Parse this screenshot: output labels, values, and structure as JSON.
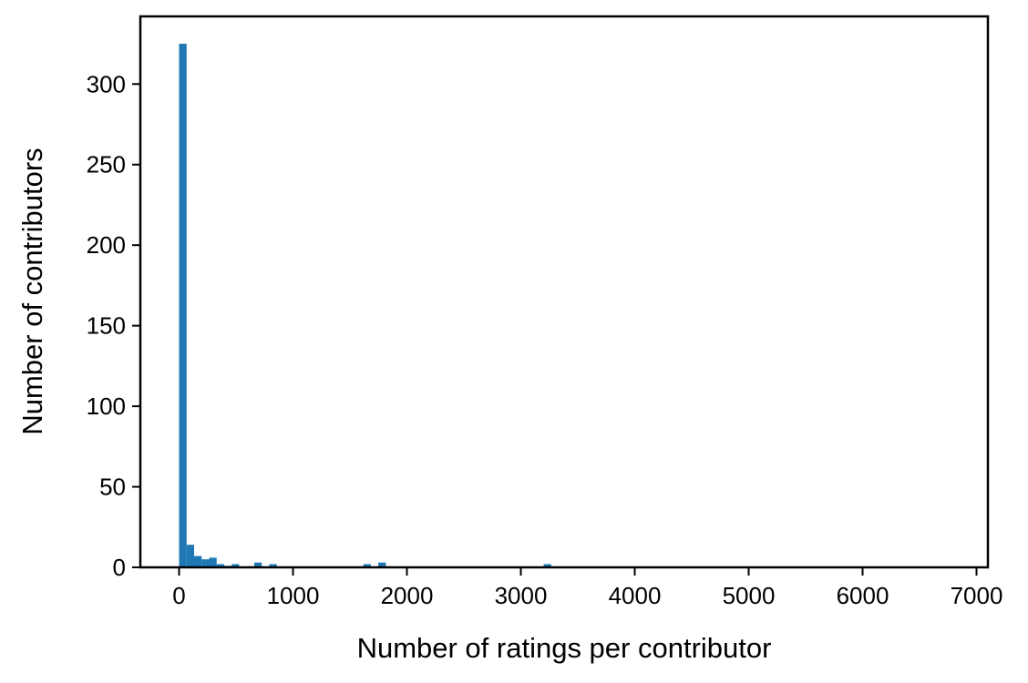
{
  "chart_data": {
    "type": "bar",
    "title": "",
    "xlabel": "Number of ratings per contributor",
    "ylabel": "Number of contributors",
    "xlim": [
      -340,
      7100
    ],
    "ylim": [
      0,
      342
    ],
    "xticks": [
      0,
      1000,
      2000,
      3000,
      4000,
      5000,
      6000,
      7000
    ],
    "yticks": [
      0,
      50,
      100,
      150,
      200,
      250,
      300
    ],
    "bin_width": 66,
    "bar_color": "#1f77b4",
    "grid": false,
    "legend": "none",
    "bins": [
      {
        "x": 33,
        "count": 325
      },
      {
        "x": 99,
        "count": 14
      },
      {
        "x": 165,
        "count": 7
      },
      {
        "x": 231,
        "count": 5
      },
      {
        "x": 297,
        "count": 6
      },
      {
        "x": 363,
        "count": 2
      },
      {
        "x": 429,
        "count": 1
      },
      {
        "x": 495,
        "count": 2
      },
      {
        "x": 693,
        "count": 3
      },
      {
        "x": 825,
        "count": 2
      },
      {
        "x": 1650,
        "count": 2
      },
      {
        "x": 1782,
        "count": 3
      },
      {
        "x": 3234,
        "count": 2
      }
    ]
  }
}
